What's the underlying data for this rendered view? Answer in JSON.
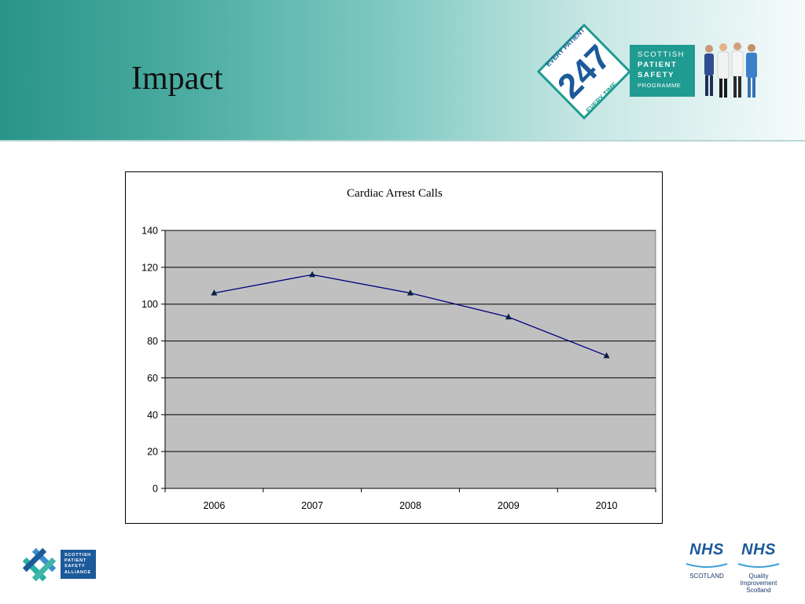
{
  "slide": {
    "title": "Impact"
  },
  "sps_logo": {
    "badge_number": "247",
    "badge_top": "EVERY PATIENT",
    "badge_bottom": "EVERY TIME",
    "line1": "SCOTTISH",
    "line2": "PATIENT",
    "line3": "SAFETY",
    "line4": "PROGRAMME"
  },
  "spsa_logo": {
    "line1": "SCOTTISH",
    "line2": "PATIENT",
    "line3": "SAFETY",
    "line4": "ALLIANCE"
  },
  "nhs_logos": {
    "left_word": "NHS",
    "left_sub": "SCOTLAND",
    "right_word": "NHS",
    "right_sub1": "Quality",
    "right_sub2": "Improvement",
    "right_sub3": "Scotland"
  },
  "colors": {
    "header_teal": "#2a9488",
    "plot_area": "#c0c0c0",
    "series_line": "#00007f",
    "marker": "#0a1f44",
    "nhs_blue": "#1c5a99"
  },
  "chart_data": {
    "type": "line",
    "title": "Cardiac Arrest Calls",
    "xlabel": "",
    "ylabel": "",
    "categories": [
      "2006",
      "2007",
      "2008",
      "2009",
      "2010"
    ],
    "series": [
      {
        "values": [
          106,
          116,
          106,
          93,
          72
        ]
      }
    ],
    "ylim": [
      0,
      140
    ],
    "yticks": [
      0,
      20,
      40,
      60,
      80,
      100,
      120,
      140
    ],
    "grid": "horizontal",
    "marker": "triangle",
    "legend": "none"
  }
}
